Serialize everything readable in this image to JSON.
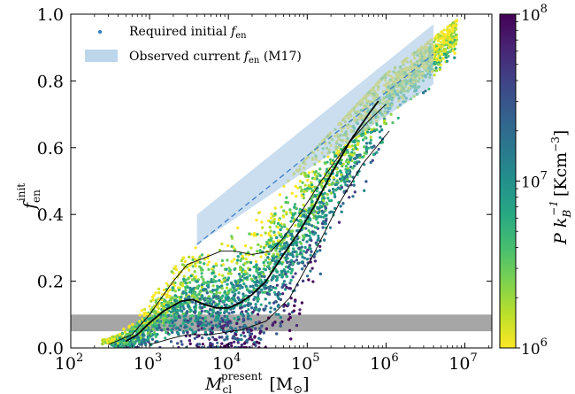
{
  "chart_data": {
    "type": "scatter",
    "x_scale": "log",
    "xlim": [
      100,
      22000000
    ],
    "ylim": [
      0.0,
      1.0
    ],
    "x_ticks": [
      100,
      1000,
      10000,
      100000,
      1000000,
      10000000
    ],
    "x_tick_labels": [
      {
        "base": "10",
        "exp": "2"
      },
      {
        "base": "10",
        "exp": "3"
      },
      {
        "base": "10",
        "exp": "4"
      },
      {
        "base": "10",
        "exp": "5"
      },
      {
        "base": "10",
        "exp": "6"
      },
      {
        "base": "10",
        "exp": "7"
      }
    ],
    "y_ticks": [
      0.0,
      0.2,
      0.4,
      0.6,
      0.8,
      1.0
    ],
    "y_tick_labels": [
      "0.0",
      "0.2",
      "0.4",
      "0.6",
      "0.8",
      "1.0"
    ],
    "xlabel": {
      "main": "M",
      "sub": "cl",
      "sup": "present",
      "unit": "[M",
      "unit_sym": "⊙",
      "unit_close": "]"
    },
    "ylabel": {
      "main": "f",
      "sub": "en",
      "sup": "init"
    },
    "legend": {
      "placement": "top-left",
      "scatter": {
        "text": "Required initial ",
        "math": "f",
        "math_sub": "en"
      },
      "band": {
        "text_a": "Observed current ",
        "math": "f",
        "math_sub": "en",
        "text_b": " (M17)"
      }
    },
    "observed_band": {
      "polygon": [
        [
          4000,
          0.31
        ],
        [
          4000,
          0.4
        ],
        [
          4000000,
          0.97
        ],
        [
          4000000,
          0.79
        ]
      ],
      "dashed_line": [
        [
          4000,
          0.31
        ],
        [
          4000000,
          0.88
        ]
      ],
      "color": "#a6c8e6"
    },
    "gray_band": {
      "y_low": 0.05,
      "y_high": 0.1,
      "color": "#a6a6a6"
    },
    "median_curve": [
      [
        500,
        0.02
      ],
      [
        700,
        0.04
      ],
      [
        1000,
        0.075
      ],
      [
        1500,
        0.11
      ],
      [
        2500,
        0.14
      ],
      [
        3500,
        0.145
      ],
      [
        5000,
        0.13
      ],
      [
        7000,
        0.12
      ],
      [
        10000,
        0.12
      ],
      [
        14000,
        0.135
      ],
      [
        20000,
        0.16
      ],
      [
        30000,
        0.2
      ],
      [
        50000,
        0.28
      ],
      [
        80000,
        0.35
      ],
      [
        120000,
        0.42
      ],
      [
        200000,
        0.52
      ],
      [
        350000,
        0.62
      ],
      [
        600000,
        0.7
      ],
      [
        800000,
        0.74
      ]
    ],
    "upper_curve": [
      [
        300,
        0.01
      ],
      [
        600,
        0.04
      ],
      [
        1000,
        0.1
      ],
      [
        2000,
        0.2
      ],
      [
        3000,
        0.25
      ],
      [
        5000,
        0.27
      ],
      [
        8000,
        0.29
      ],
      [
        12000,
        0.29
      ],
      [
        20000,
        0.28
      ],
      [
        35000,
        0.29
      ],
      [
        50000,
        0.33
      ],
      [
        80000,
        0.4
      ],
      [
        150000,
        0.5
      ],
      [
        300000,
        0.6
      ],
      [
        600000,
        0.68
      ],
      [
        1000000,
        0.73
      ]
    ],
    "lower_curve": [
      [
        1000,
        0.01
      ],
      [
        2000,
        0.03
      ],
      [
        3000,
        0.04
      ],
      [
        6000,
        0.04
      ],
      [
        15000,
        0.055
      ],
      [
        30000,
        0.08
      ],
      [
        60000,
        0.15
      ],
      [
        120000,
        0.28
      ],
      [
        250000,
        0.43
      ],
      [
        500000,
        0.55
      ],
      [
        1100000,
        0.65
      ]
    ],
    "colorbar": {
      "label": {
        "pre": "P k",
        "sub": "B",
        "sup": "−1",
        "unit": "[Kcm",
        "unit_sup": "−3",
        "close": "]"
      },
      "ticks": [
        {
          "base": "10",
          "exp": "8",
          "frac": 1.0
        },
        {
          "base": "10",
          "exp": "7",
          "frac": 0.5
        },
        {
          "base": "10",
          "exp": "6",
          "frac": 0.0
        }
      ],
      "range": [
        1000000,
        100000000
      ],
      "colormap": "viridis_r"
    },
    "n_points": 6000
  }
}
